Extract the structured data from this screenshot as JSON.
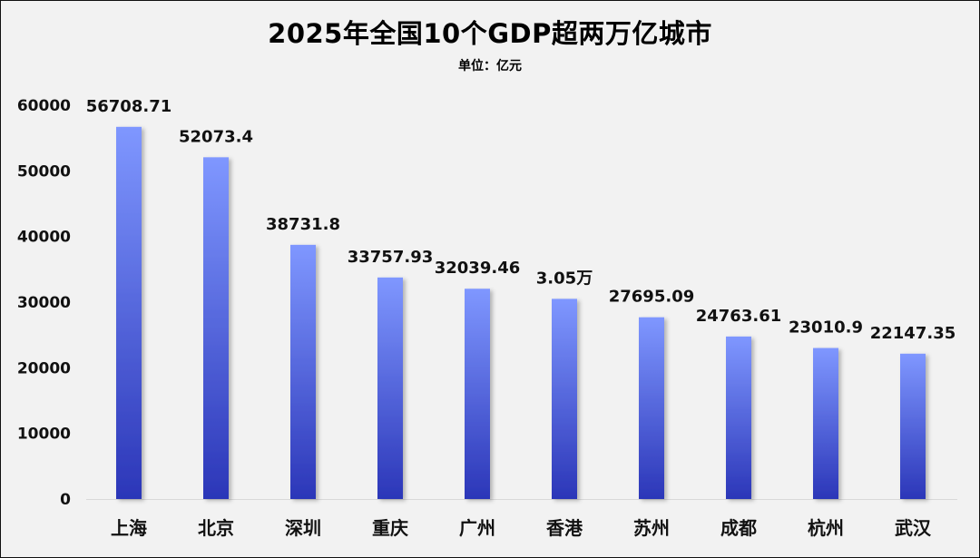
{
  "chart_data": {
    "type": "bar",
    "title": "2025年全国10个GDP超两万亿城市",
    "subtitle": "单位：亿元",
    "xlabel": "",
    "ylabel": "",
    "ylim": [
      0,
      60000
    ],
    "yticks": [
      0,
      10000,
      20000,
      30000,
      40000,
      50000,
      60000
    ],
    "categories": [
      "上海",
      "北京",
      "深圳",
      "重庆",
      "广州",
      "香港",
      "苏州",
      "成都",
      "杭州",
      "武汉"
    ],
    "values": [
      56708.71,
      52073.4,
      38731.8,
      33757.93,
      32039.46,
      30500,
      27695.09,
      24763.61,
      23010.9,
      22147.35
    ],
    "data_labels": [
      "56708.71",
      "52073.4",
      "38731.8",
      "33757.93",
      "32039.46",
      "3.05万",
      "27695.09",
      "24763.61",
      "23010.9",
      "22147.35"
    ],
    "grid": false,
    "legend": "none",
    "colors": {
      "bar_top": "#7f97ff",
      "bar_bottom": "#2b36b8",
      "background": "#f2f2f2",
      "axis": "#d9d9d9"
    }
  }
}
